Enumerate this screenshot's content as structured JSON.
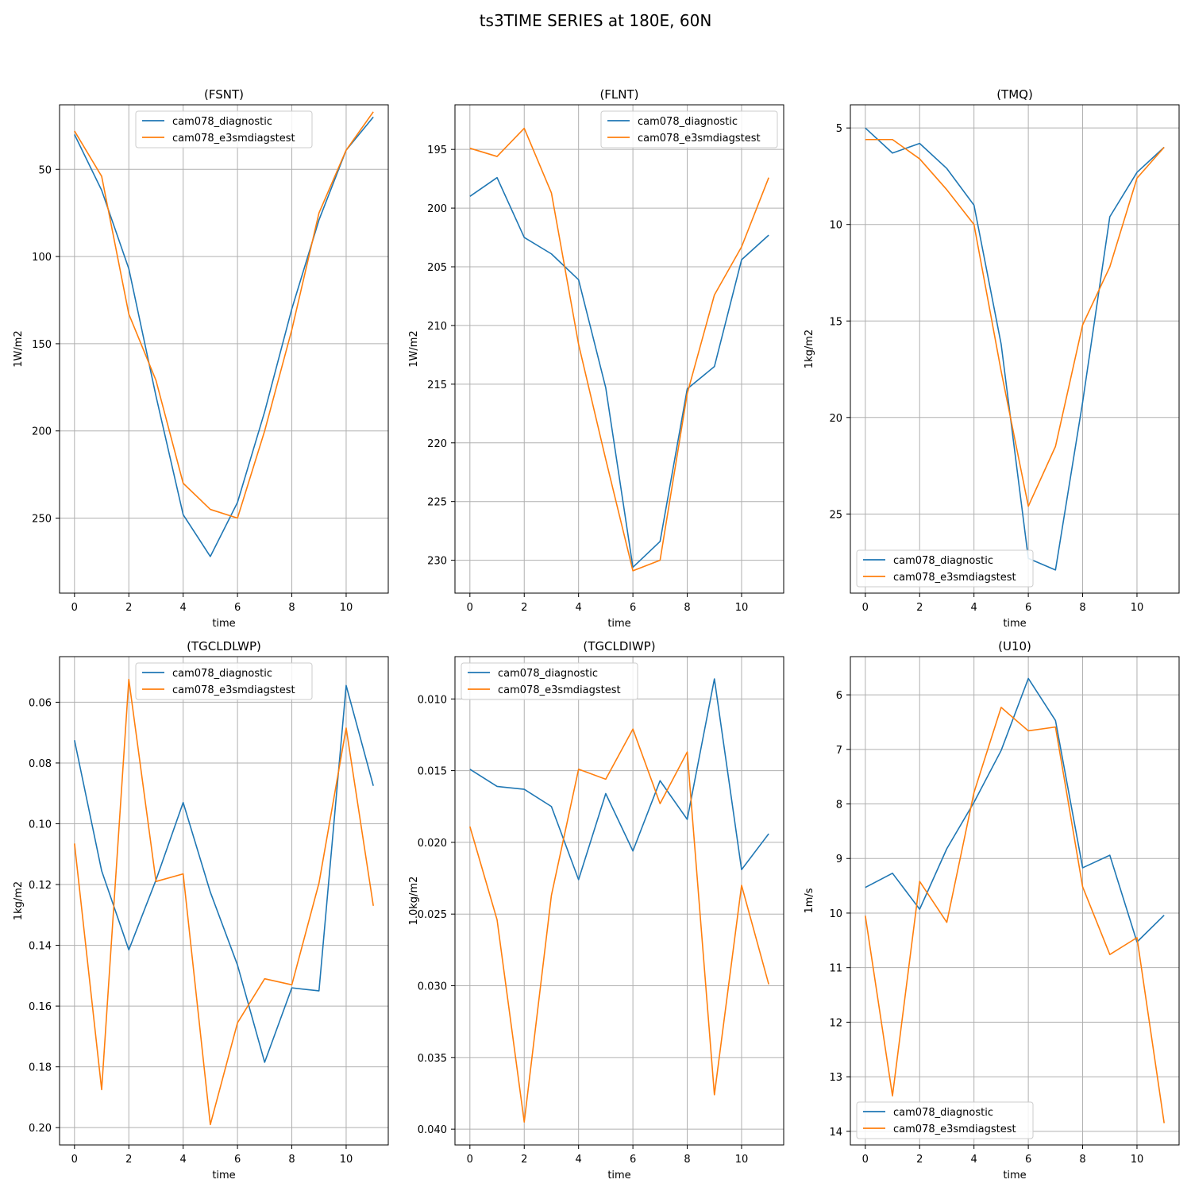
{
  "suptitle": "ts3TIME SERIES at 180E, 60N",
  "colors": {
    "series0": "#1f77b4",
    "series1": "#ff7f0e",
    "grid": "#b0b0b0"
  },
  "chart_data": [
    {
      "type": "line",
      "title": "(FSNT)",
      "xlabel": "time",
      "ylabel": "1W/m2",
      "inverted_y": true,
      "xlim": [
        -0.55,
        11.55
      ],
      "ylim": [
        13,
        293
      ],
      "xticks": [
        0,
        2,
        4,
        6,
        8,
        10
      ],
      "yticks": [
        50,
        100,
        150,
        200,
        250
      ],
      "ytick_labels": [
        "50",
        "100",
        "150",
        "200",
        "250"
      ],
      "grid": true,
      "legend_loc": "upper center",
      "x": [
        0,
        1,
        2,
        3,
        4,
        5,
        6,
        7,
        8,
        9,
        10,
        11
      ],
      "series": [
        {
          "name": "cam078_diagnostic",
          "values": [
            30,
            62,
            107,
            180,
            248,
            272,
            241,
            189,
            130,
            79,
            39,
            20
          ]
        },
        {
          "name": "cam078_e3smdiagstest",
          "values": [
            28,
            54,
            133,
            171,
            230,
            245,
            250,
            200,
            142,
            75,
            39,
            17
          ]
        }
      ]
    },
    {
      "type": "line",
      "title": "(FLNT)",
      "xlabel": "time",
      "ylabel": "1W/m2",
      "inverted_y": true,
      "xlim": [
        -0.55,
        11.55
      ],
      "ylim": [
        191.2,
        232.8
      ],
      "xticks": [
        0,
        2,
        4,
        6,
        8,
        10
      ],
      "yticks": [
        195,
        200,
        205,
        210,
        215,
        220,
        225,
        230
      ],
      "ytick_labels": [
        "195",
        "200",
        "205",
        "210",
        "215",
        "220",
        "225",
        "230"
      ],
      "grid": true,
      "legend_loc": "upper right",
      "x": [
        0,
        1,
        2,
        3,
        4,
        5,
        6,
        7,
        8,
        9,
        10,
        11
      ],
      "series": [
        {
          "name": "cam078_diagnostic",
          "values": [
            199,
            197.4,
            202.5,
            203.9,
            206.1,
            215.3,
            230.6,
            228.4,
            215.4,
            213.5,
            204.4,
            202.3
          ]
        },
        {
          "name": "cam078_e3smdiagstest",
          "values": [
            194.9,
            195.6,
            193.2,
            198.7,
            211.6,
            221.4,
            230.9,
            230.0,
            215.8,
            207.4,
            203.3,
            197.4
          ]
        }
      ]
    },
    {
      "type": "line",
      "title": "(TMQ)",
      "xlabel": "time",
      "ylabel": "1kg/m2",
      "inverted_y": true,
      "xlim": [
        -0.55,
        11.55
      ],
      "ylim": [
        3.8,
        29.1
      ],
      "xticks": [
        0,
        2,
        4,
        6,
        8,
        10
      ],
      "yticks": [
        5,
        10,
        15,
        20,
        25
      ],
      "ytick_labels": [
        "5",
        "10",
        "15",
        "20",
        "25"
      ],
      "grid": true,
      "legend_loc": "lower left",
      "x": [
        0,
        1,
        2,
        3,
        4,
        5,
        6,
        7,
        8,
        9,
        10,
        11
      ],
      "series": [
        {
          "name": "cam078_diagnostic",
          "values": [
            5.0,
            6.3,
            5.8,
            7.1,
            9.0,
            16.2,
            27.3,
            27.9,
            19.2,
            9.6,
            7.3,
            6.0
          ]
        },
        {
          "name": "cam078_e3smdiagstest",
          "values": [
            5.6,
            5.6,
            6.6,
            8.2,
            10.0,
            17.6,
            24.6,
            21.5,
            15.2,
            12.2,
            7.6,
            6.0
          ]
        }
      ]
    },
    {
      "type": "line",
      "title": "(TGCLDLWP)",
      "xlabel": "time",
      "ylabel": "1kg/m2",
      "inverted_y": true,
      "xlim": [
        -0.55,
        11.55
      ],
      "ylim": [
        0.045,
        0.2057
      ],
      "xticks": [
        0,
        2,
        4,
        6,
        8,
        10
      ],
      "yticks": [
        0.06,
        0.08,
        0.1,
        0.12,
        0.14,
        0.16,
        0.18,
        0.2
      ],
      "ytick_labels": [
        "0.06",
        "0.08",
        "0.10",
        "0.12",
        "0.14",
        "0.16",
        "0.18",
        "0.20"
      ],
      "grid": true,
      "legend_loc": "upper center",
      "x": [
        0,
        1,
        2,
        3,
        4,
        5,
        6,
        7,
        8,
        9,
        10,
        11
      ],
      "series": [
        {
          "name": "cam078_diagnostic",
          "values": [
            0.0725,
            0.1155,
            0.1415,
            0.1185,
            0.093,
            0.1225,
            0.1465,
            0.1785,
            0.154,
            0.155,
            0.0545,
            0.0875
          ]
        },
        {
          "name": "cam078_e3smdiagstest",
          "values": [
            0.1065,
            0.1875,
            0.0525,
            0.119,
            0.1165,
            0.199,
            0.1655,
            0.151,
            0.153,
            0.1195,
            0.0685,
            0.127
          ]
        }
      ]
    },
    {
      "type": "line",
      "title": "(TGCLDIWP)",
      "xlabel": "time",
      "ylabel": "1.0kg/m2",
      "inverted_y": true,
      "xlim": [
        -0.55,
        11.55
      ],
      "ylim": [
        0.00705,
        0.0411
      ],
      "xticks": [
        0,
        2,
        4,
        6,
        8,
        10
      ],
      "yticks": [
        0.01,
        0.015,
        0.02,
        0.025,
        0.03,
        0.035,
        0.04
      ],
      "ytick_labels": [
        "0.010",
        "0.015",
        "0.020",
        "0.025",
        "0.030",
        "0.035",
        "0.040"
      ],
      "grid": true,
      "legend_loc": "upper left",
      "x": [
        0,
        1,
        2,
        3,
        4,
        5,
        6,
        7,
        8,
        9,
        10,
        11
      ],
      "series": [
        {
          "name": "cam078_diagnostic",
          "values": [
            0.0149,
            0.0161,
            0.0163,
            0.0175,
            0.0226,
            0.0166,
            0.0206,
            0.0157,
            0.0184,
            0.0086,
            0.0219,
            0.0194
          ]
        },
        {
          "name": "cam078_e3smdiagstest",
          "values": [
            0.0189,
            0.0254,
            0.0395,
            0.0237,
            0.0149,
            0.0156,
            0.0121,
            0.0173,
            0.0137,
            0.0376,
            0.023,
            0.0299
          ]
        }
      ]
    },
    {
      "type": "line",
      "title": "(U10)",
      "xlabel": "time",
      "ylabel": "1m/s",
      "inverted_y": true,
      "xlim": [
        -0.55,
        11.55
      ],
      "ylim": [
        5.3,
        14.25
      ],
      "xticks": [
        0,
        2,
        4,
        6,
        8,
        10
      ],
      "yticks": [
        6,
        7,
        8,
        9,
        10,
        11,
        12,
        13,
        14
      ],
      "ytick_labels": [
        "6",
        "7",
        "8",
        "9",
        "10",
        "11",
        "12",
        "13",
        "14"
      ],
      "grid": true,
      "legend_loc": "lower left",
      "x": [
        0,
        1,
        2,
        3,
        4,
        5,
        6,
        7,
        8,
        9,
        10,
        11
      ],
      "series": [
        {
          "name": "cam078_diagnostic",
          "values": [
            9.53,
            9.27,
            9.93,
            8.82,
            7.97,
            7.02,
            5.7,
            6.47,
            9.17,
            8.94,
            10.53,
            10.04
          ]
        },
        {
          "name": "cam078_e3smdiagstest",
          "values": [
            10.05,
            13.35,
            9.42,
            10.17,
            7.79,
            6.23,
            6.66,
            6.59,
            9.52,
            10.76,
            10.45,
            13.85
          ]
        }
      ]
    }
  ]
}
